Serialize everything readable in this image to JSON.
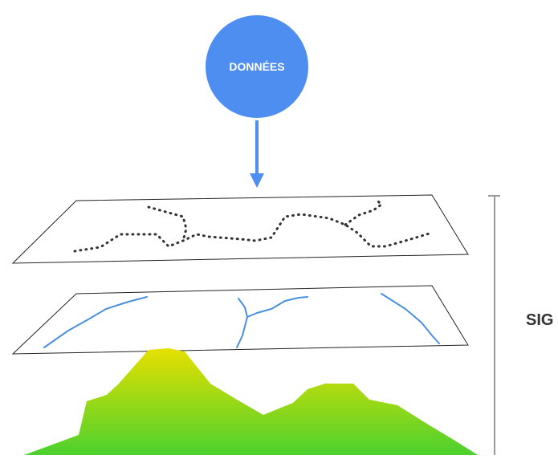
{
  "data_node": {
    "label": "DONNÉES",
    "color": "#4d8ef0"
  },
  "layers": [
    {
      "name": "points",
      "color": "#333333"
    },
    {
      "name": "lines",
      "color": "#4a8fe0"
    },
    {
      "name": "terrain",
      "top_color": "#e6e000",
      "bottom_color": "#4cd12e"
    }
  ],
  "bracket": {
    "label": "SIG",
    "color": "#999999"
  }
}
